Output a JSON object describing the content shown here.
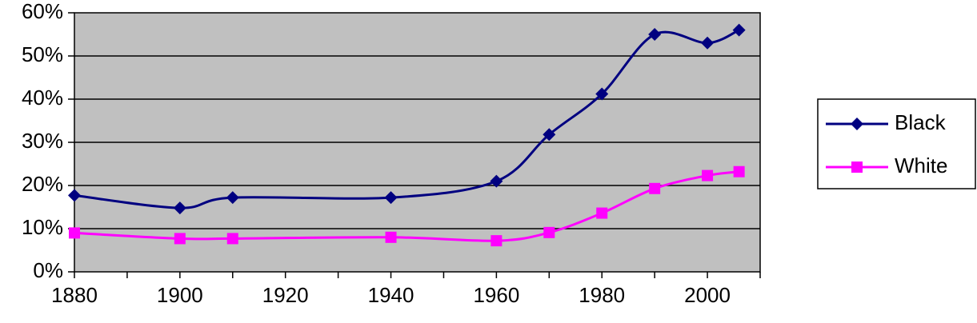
{
  "chart_data": {
    "type": "line",
    "title": "",
    "xlabel": "",
    "ylabel": "",
    "xlim": [
      1880,
      2010
    ],
    "ylim": [
      0,
      60
    ],
    "x_ticks": [
      "1880",
      "1900",
      "1920",
      "1940",
      "1960",
      "1980",
      "2000"
    ],
    "y_ticks": [
      "0%",
      "10%",
      "20%",
      "30%",
      "40%",
      "50%",
      "60%"
    ],
    "grid": "horizontal",
    "plot_background": "#C0C0C0",
    "legend": {
      "placement": "right"
    },
    "series": [
      {
        "name": "Black",
        "color": "#000080",
        "marker": "diamond",
        "x": [
          1880,
          1900,
          1910,
          1940,
          1960,
          1970,
          1980,
          1990,
          2000,
          2006
        ],
        "y": [
          17.7,
          14.8,
          17.2,
          17.2,
          21.0,
          31.8,
          41.2,
          55.0,
          53.0,
          56.0
        ]
      },
      {
        "name": "White",
        "color": "#FF00FF",
        "marker": "square",
        "x": [
          1880,
          1900,
          1910,
          1940,
          1960,
          1970,
          1980,
          1990,
          2000,
          2006
        ],
        "y": [
          9.0,
          7.7,
          7.7,
          8.0,
          7.2,
          9.1,
          13.6,
          19.3,
          22.3,
          23.2
        ]
      }
    ]
  }
}
